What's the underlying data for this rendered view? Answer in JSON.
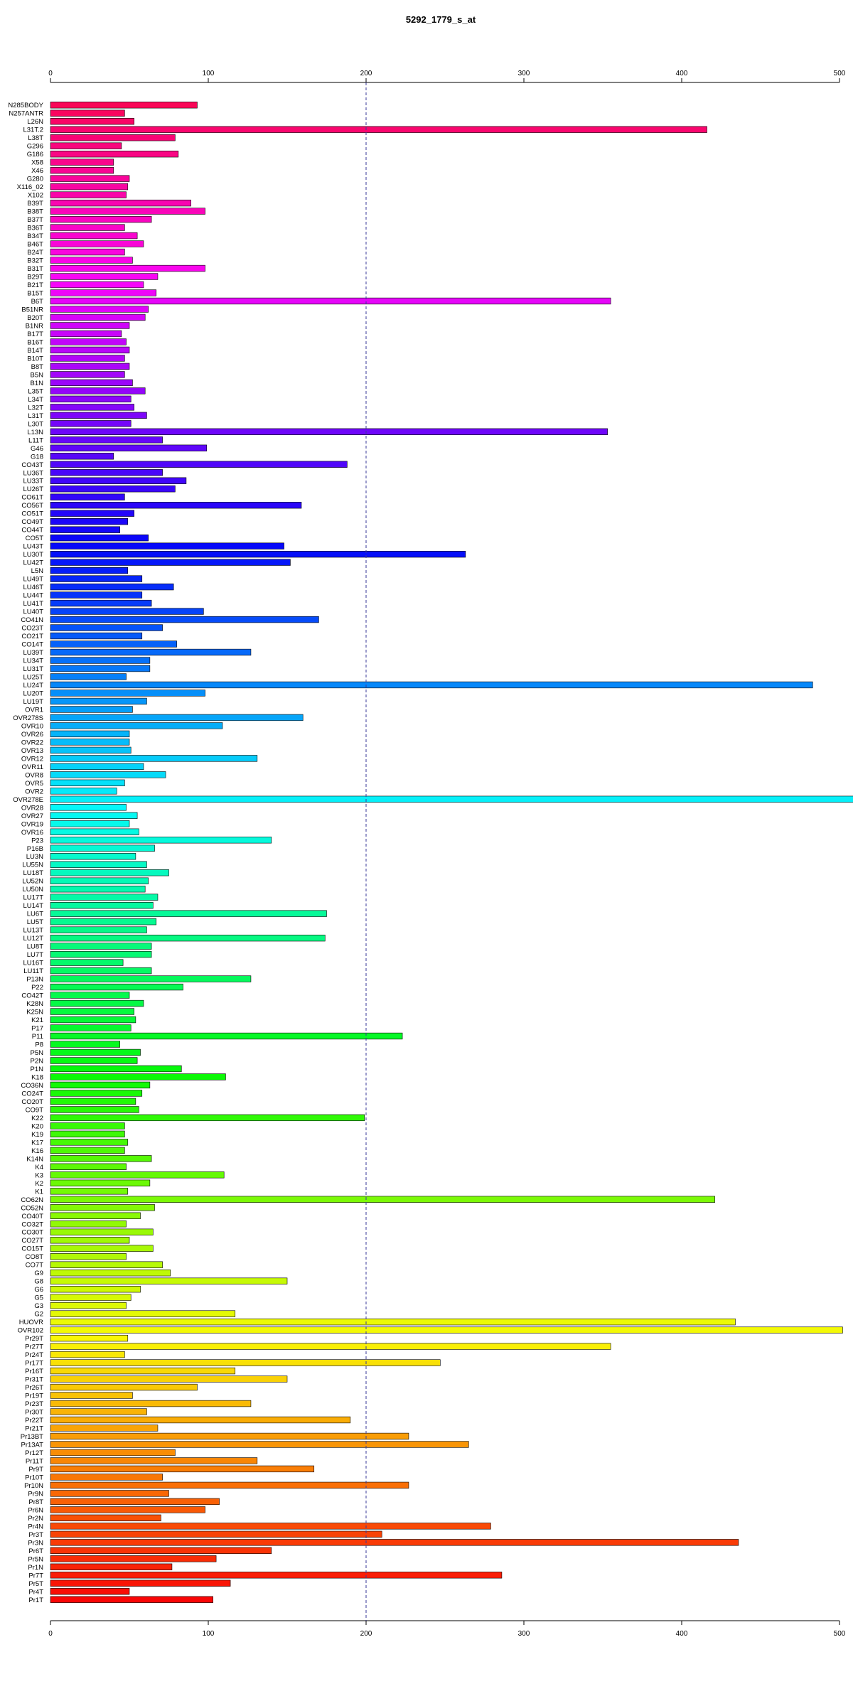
{
  "chart_data": {
    "type": "bar",
    "orientation": "horizontal",
    "title": "5292_1779_s_at",
    "xlabel": "",
    "ylabel": "",
    "xlim": [
      0,
      500
    ],
    "x_ticks": [
      0,
      100,
      200,
      300,
      400,
      500
    ],
    "reference_line": 200,
    "grid": false,
    "legend": "none",
    "categories": [
      "N285BODY",
      "N257ANTR",
      "L26N",
      "L31T.2",
      "L38T",
      "G296",
      "G186",
      "X58",
      "X46",
      "G280",
      "X116_02",
      "X102",
      "B39T",
      "B38T",
      "B37T",
      "B36T",
      "B34T",
      "B46T",
      "B24T",
      "B32T",
      "B31T",
      "B29T",
      "B21T",
      "B15T",
      "B6T",
      "B51NR",
      "B20T",
      "B1NR",
      "B17T",
      "B16T",
      "B14T",
      "B10T",
      "B8T",
      "B5N",
      "B1N",
      "L35T",
      "L34T",
      "L32T",
      "L31T",
      "L30T",
      "L13N",
      "L11T",
      "G46",
      "G18",
      "CO43T",
      "LU36T",
      "LU33T",
      "LU26T",
      "CO61T",
      "CO56T",
      "CO51T",
      "CO49T",
      "CO44T",
      "CO5T",
      "LU43T",
      "LU30T",
      "LU42T",
      "L5N",
      "LU49T",
      "LU46T",
      "LU44T",
      "LU41T",
      "LU40T",
      "CO41N",
      "CO23T",
      "CO21T",
      "CO14T",
      "LU39T",
      "LU34T",
      "LU31T",
      "LU25T",
      "LU24T",
      "LU20T",
      "LU19T",
      "OVR1",
      "OVR278S",
      "OVR10",
      "OVR26",
      "OVR22",
      "OVR13",
      "OVR12",
      "OVR11",
      "OVR8",
      "OVR5",
      "OVR2",
      "OVR278E",
      "OVR28",
      "OVR27",
      "OVR19",
      "OVR16",
      "P23",
      "P16B",
      "LU3N",
      "LU55N",
      "LU18T",
      "LU52N",
      "LU50N",
      "LU17T",
      "LU14T",
      "LU6T",
      "LU5T",
      "LU13T",
      "LU12T",
      "LU8T",
      "LU7T",
      "LU16T",
      "LU11T",
      "P13N",
      "P22",
      "CO42T",
      "K28N",
      "K25N",
      "K21",
      "P17",
      "P11",
      "P8",
      "P5N",
      "P2N",
      "P1N",
      "K18",
      "CO36N",
      "CO24T",
      "CO20T",
      "CO9T",
      "K22",
      "K20",
      "K19",
      "K17",
      "K16",
      "K14N",
      "K4",
      "K3",
      "K2",
      "K1",
      "CO62N",
      "CO52N",
      "CO40T",
      "CO32T",
      "CO30T",
      "CO27T",
      "CO15T",
      "CO8T",
      "CO7T",
      "G9",
      "G8",
      "G6",
      "G5",
      "G3",
      "G2",
      "HUOVR",
      "OVR102",
      "Pr29T",
      "Pr27T",
      "Pr24T",
      "Pr17T",
      "Pr16T",
      "Pr31T",
      "Pr26T",
      "Pr19T",
      "Pr23T",
      "Pr30T",
      "Pr22T",
      "Pr21T",
      "Pr13BT",
      "Pr13AT",
      "Pr12T",
      "Pr11T",
      "Pr9T",
      "Pr10T",
      "Pr10N",
      "Pr9N",
      "Pr8T",
      "Pr6N",
      "Pr2N",
      "Pr4N",
      "Pr3T",
      "Pr3N",
      "Pr6T",
      "Pr5N",
      "Pr1N",
      "Pr7T",
      "Pr5T",
      "Pr4T",
      "Pr1T"
    ],
    "values": [
      93,
      47,
      53,
      416,
      79,
      45,
      81,
      40,
      40,
      50,
      49,
      48,
      89,
      98,
      64,
      47,
      55,
      59,
      47,
      52,
      98,
      68,
      59,
      67,
      355,
      62,
      60,
      50,
      45,
      48,
      50,
      47,
      50,
      47,
      52,
      60,
      51,
      53,
      61,
      51,
      353,
      71,
      99,
      40,
      188,
      71,
      86,
      79,
      47,
      159,
      53,
      49,
      44,
      62,
      148,
      263,
      152,
      49,
      58,
      78,
      58,
      64,
      97,
      170,
      71,
      58,
      80,
      127,
      63,
      63,
      48,
      483,
      98,
      61,
      52,
      160,
      109,
      50,
      50,
      51,
      131,
      59,
      73,
      47,
      42,
      509,
      48,
      55,
      50,
      56,
      140,
      66,
      54,
      61,
      75,
      62,
      60,
      68,
      65,
      175,
      67,
      61,
      174,
      64,
      64,
      46,
      64,
      127,
      84,
      50,
      59,
      53,
      54,
      51,
      223,
      44,
      57,
      55,
      83,
      111,
      63,
      58,
      54,
      56,
      199,
      47,
      47,
      49,
      47,
      64,
      48,
      110,
      63,
      49,
      421,
      66,
      57,
      48,
      65,
      50,
      65,
      48,
      71,
      76,
      150,
      57,
      51,
      48,
      117,
      434,
      502,
      49,
      355,
      47,
      247,
      117,
      150,
      93,
      52,
      127,
      61,
      190,
      68,
      227,
      265,
      79,
      131,
      167,
      71,
      227,
      75,
      107,
      98,
      70,
      279,
      210,
      436,
      140,
      105,
      77,
      286,
      114,
      50,
      103
    ]
  }
}
